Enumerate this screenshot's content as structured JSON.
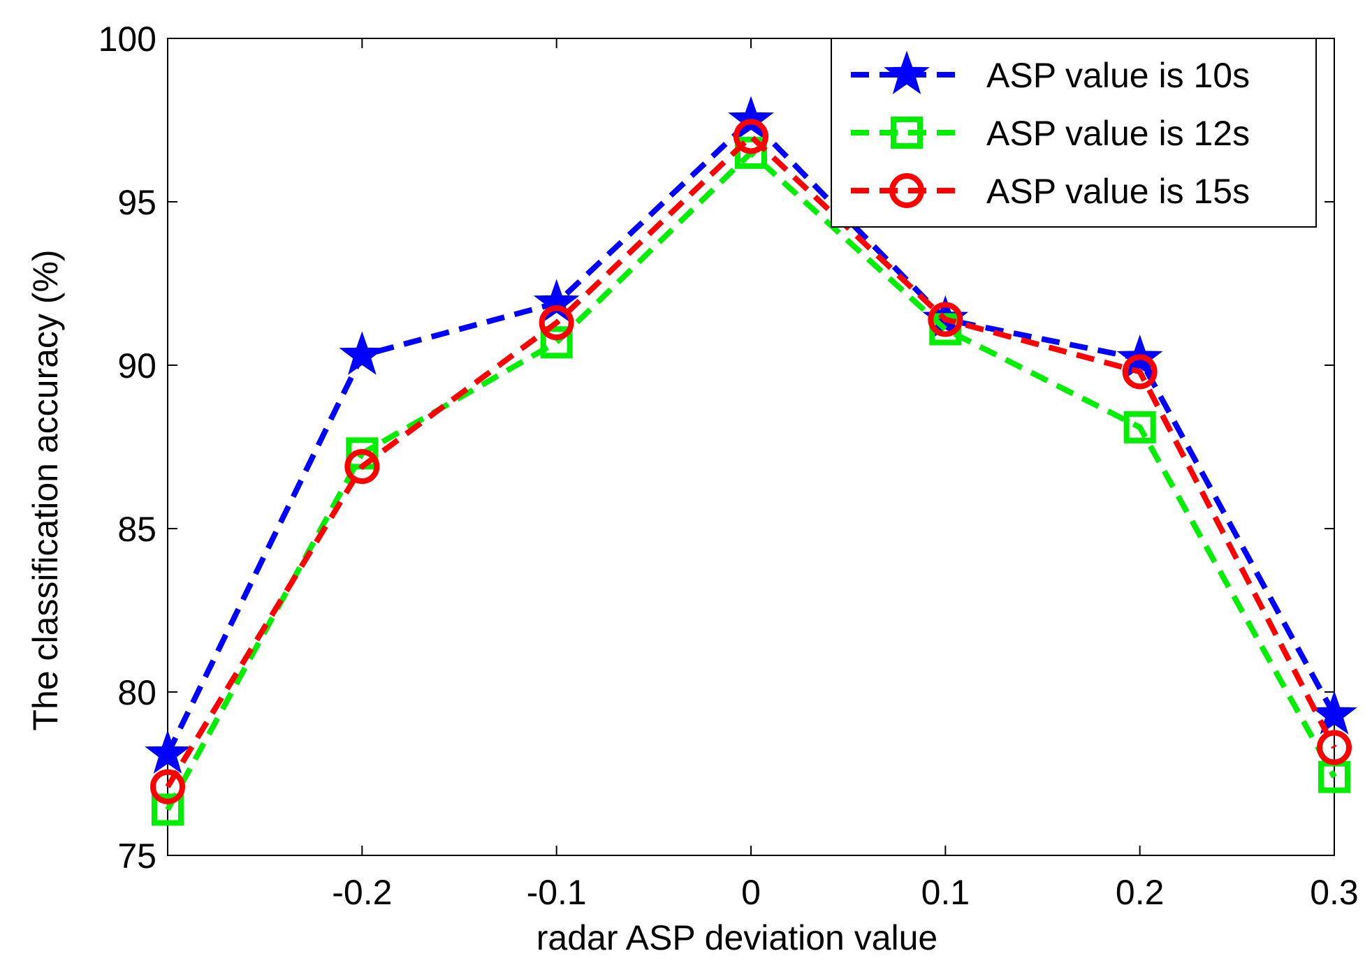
{
  "chart_data": {
    "type": "line",
    "title": "",
    "xlabel": "radar ASP deviation value",
    "ylabel": "The classification accuracy (%)",
    "xlim": [
      -0.3,
      0.3
    ],
    "ylim": [
      75,
      100
    ],
    "x_ticks": [
      -0.2,
      -0.1,
      0,
      0.1,
      0.2,
      0.3
    ],
    "x_tick_labels": [
      "-0.2",
      "-0.1",
      "0",
      "0.1",
      "0.2",
      "0.3"
    ],
    "y_ticks": [
      75,
      80,
      85,
      90,
      95,
      100
    ],
    "y_tick_labels": [
      "75",
      "80",
      "85",
      "90",
      "95",
      "100"
    ],
    "grid": false,
    "legend_position": "top-right",
    "x": [
      -0.3,
      -0.2,
      -0.1,
      0,
      0.1,
      0.2,
      0.3
    ],
    "series": [
      {
        "name": "ASP value is 10s",
        "color": "#0000ff",
        "marker": "star",
        "line_style": "dashed",
        "values": [
          78.1,
          90.3,
          91.9,
          97.5,
          91.4,
          90.2,
          79.3
        ]
      },
      {
        "name": "ASP value is 12s",
        "color": "#00ee00",
        "marker": "square",
        "line_style": "dashed",
        "values": [
          76.4,
          87.3,
          90.7,
          96.5,
          91.1,
          88.1,
          77.4
        ]
      },
      {
        "name": "ASP value is 15s",
        "color": "#ff0000",
        "marker": "circle",
        "line_style": "dashed",
        "values": [
          77.1,
          86.9,
          91.3,
          97.0,
          91.4,
          89.8,
          78.3
        ]
      }
    ]
  }
}
